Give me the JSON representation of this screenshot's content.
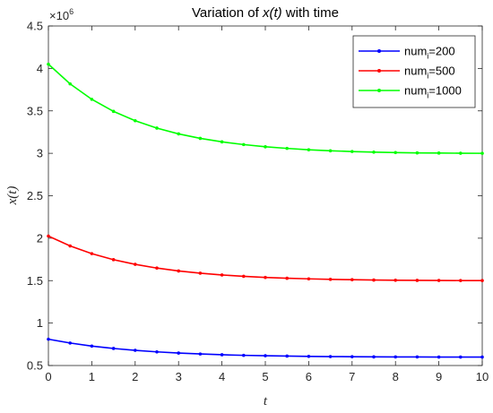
{
  "chart_data": {
    "type": "line",
    "title_prefix": "Variation of ",
    "title_var": "x(t)",
    "title_suffix": " with time",
    "xlabel": "t",
    "ylabel": "x(t)",
    "xlim": [
      0,
      10
    ],
    "ylim": [
      500000,
      4500000
    ],
    "x_ticks": [
      0,
      1,
      2,
      3,
      4,
      5,
      6,
      7,
      8,
      9,
      10
    ],
    "y_ticks": [
      500000,
      1000000,
      1500000,
      2000000,
      2500000,
      3000000,
      3500000,
      4000000,
      4500000
    ],
    "x_tick_labels": [
      "0",
      "1",
      "2",
      "3",
      "4",
      "5",
      "6",
      "7",
      "8",
      "9",
      "10"
    ],
    "y_tick_labels": [
      "0.5",
      "1",
      "1.5",
      "2",
      "2.5",
      "3",
      "3.5",
      "4",
      "4.5"
    ],
    "y_exponent_base": "×10",
    "y_exponent_power": "6",
    "grid": false,
    "legend_position": "top-right",
    "x": [
      0,
      0.5,
      1,
      1.5,
      2,
      2.5,
      3,
      3.5,
      4,
      4.5,
      5,
      5.5,
      6,
      6.5,
      7,
      7.5,
      8,
      8.5,
      9,
      9.5,
      10
    ],
    "series": [
      {
        "name_base": "num",
        "name_sub": "i",
        "name_value": "=200",
        "color": "#0000ff",
        "values": [
          810000,
          765000,
          729000,
          701000,
          679000,
          661000,
          647000,
          636000,
          627000,
          620000,
          615000,
          611000,
          608000,
          605000,
          604000,
          602000,
          601000,
          601000,
          600000,
          600000,
          600000
        ]
      },
      {
        "name_base": "num",
        "name_sub": "i",
        "name_value": "=500",
        "color": "#ff0000",
        "values": [
          2025000,
          1909000,
          1818000,
          1747000,
          1692000,
          1648000,
          1614000,
          1588000,
          1567000,
          1551000,
          1538000,
          1528000,
          1521000,
          1515000,
          1511000,
          1507000,
          1505000,
          1503000,
          1502000,
          1501000,
          1501000
        ]
      },
      {
        "name_base": "num",
        "name_sub": "i",
        "name_value": "=1000",
        "color": "#00ff00",
        "values": [
          4050000,
          3818000,
          3636000,
          3494000,
          3384000,
          3297000,
          3229000,
          3176000,
          3135000,
          3103000,
          3077000,
          3058000,
          3042000,
          3030000,
          3021000,
          3014000,
          3009000,
          3005000,
          3003000,
          3001000,
          3000000
        ]
      }
    ]
  }
}
